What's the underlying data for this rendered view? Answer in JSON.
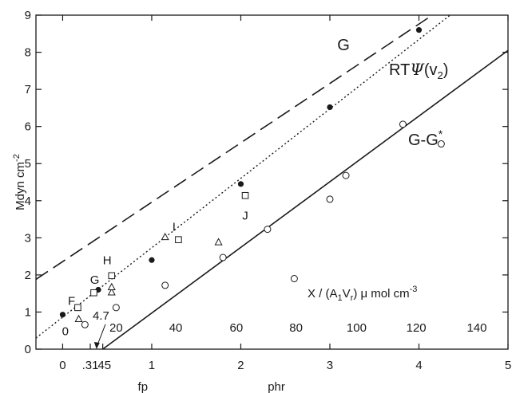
{
  "chart_data": {
    "type": "scatter",
    "ylabel": "Mdyn cm",
    "ylabel_exponent": "-2",
    "ylim": [
      0,
      9
    ],
    "xlim": [
      -0.3,
      5
    ],
    "y_ticks": [
      "0",
      "1",
      "2",
      "3",
      "4",
      "5",
      "6",
      "7",
      "8",
      "9"
    ],
    "x_ticks": [
      {
        "x": 0,
        "label": "0"
      },
      {
        "x": 0.31,
        "label": ".31"
      },
      {
        "x": 0.45,
        "label": ".45"
      },
      {
        "x": 1,
        "label": "1"
      },
      {
        "x": 2,
        "label": "2"
      },
      {
        "x": 3,
        "label": "3"
      },
      {
        "x": 4,
        "label": "4"
      },
      {
        "x": 5,
        "label": "5"
      }
    ],
    "fp_label": "fp",
    "phr_label": "phr",
    "secondary_axis": {
      "label_prefix": "X / (A",
      "label_sub1": "1",
      "label_mid": "V",
      "label_sub2": "r",
      "label_suffix": ") μ mol cm",
      "label_sup": "-3",
      "ticks": [
        {
          "x": 0.6,
          "label": "20"
        },
        {
          "x": 1.27,
          "label": "40"
        },
        {
          "x": 1.95,
          "label": "60"
        },
        {
          "x": 2.62,
          "label": "80"
        },
        {
          "x": 3.3,
          "label": "100"
        },
        {
          "x": 3.97,
          "label": "120"
        },
        {
          "x": 4.65,
          "label": "140"
        }
      ]
    },
    "series": [
      {
        "name": "G",
        "style": "long-dash",
        "points": [
          [
            -0.3,
            1.88
          ],
          [
            4.15,
            9.0
          ]
        ]
      },
      {
        "name": "RTΨ(v2)",
        "name_base": "RT",
        "name_greek": "Ψ",
        "name_arg_open": "(v",
        "name_arg_sub": "2",
        "name_arg_close": ")",
        "style": "dotted",
        "points": [
          [
            -0.3,
            0.3
          ],
          [
            4.35,
            9.0
          ]
        ]
      },
      {
        "name": "G-G*",
        "name_base": "G-G",
        "name_sup": "*",
        "style": "solid",
        "points": [
          [
            0.45,
            0.0
          ],
          [
            5.0,
            8.05
          ]
        ]
      }
    ],
    "filled_circles": [
      [
        0.0,
        0.93
      ],
      [
        0.4,
        1.6
      ],
      [
        1.0,
        2.4
      ],
      [
        2.0,
        4.45
      ],
      [
        3.0,
        6.52
      ],
      [
        4.0,
        8.6
      ]
    ],
    "open_circles": [
      [
        0.25,
        0.66
      ],
      [
        0.6,
        1.12
      ],
      [
        1.15,
        1.72
      ],
      [
        1.8,
        2.47
      ],
      [
        2.3,
        3.23
      ],
      [
        2.6,
        1.9
      ],
      [
        3.0,
        4.04
      ],
      [
        3.18,
        4.68
      ],
      [
        3.82,
        6.06
      ],
      [
        4.25,
        5.53
      ]
    ],
    "open_squares": [
      [
        0.17,
        1.12
      ],
      [
        0.35,
        1.52
      ],
      [
        0.55,
        1.98
      ],
      [
        1.3,
        2.95
      ],
      [
        2.05,
        4.14
      ]
    ],
    "open_triangles": [
      [
        0.18,
        0.81
      ],
      [
        0.55,
        1.53
      ],
      [
        0.55,
        1.67
      ],
      [
        1.15,
        3.02
      ],
      [
        1.75,
        2.88
      ]
    ],
    "point_labels": [
      {
        "text": "0",
        "x": 0.03,
        "y": 0.48
      },
      {
        "text": "F",
        "x": 0.1,
        "y": 1.3
      },
      {
        "text": "G",
        "x": 0.36,
        "y": 1.87
      },
      {
        "text": "H",
        "x": 0.5,
        "y": 2.4
      },
      {
        "text": "I",
        "x": 1.25,
        "y": 3.3
      },
      {
        "text": "J",
        "x": 2.05,
        "y": 3.6
      },
      {
        "text": "4.7",
        "x": 0.43,
        "y": 0.9
      }
    ],
    "colors": {
      "ink": "#1a1a1a",
      "background": "#ffffff"
    }
  }
}
